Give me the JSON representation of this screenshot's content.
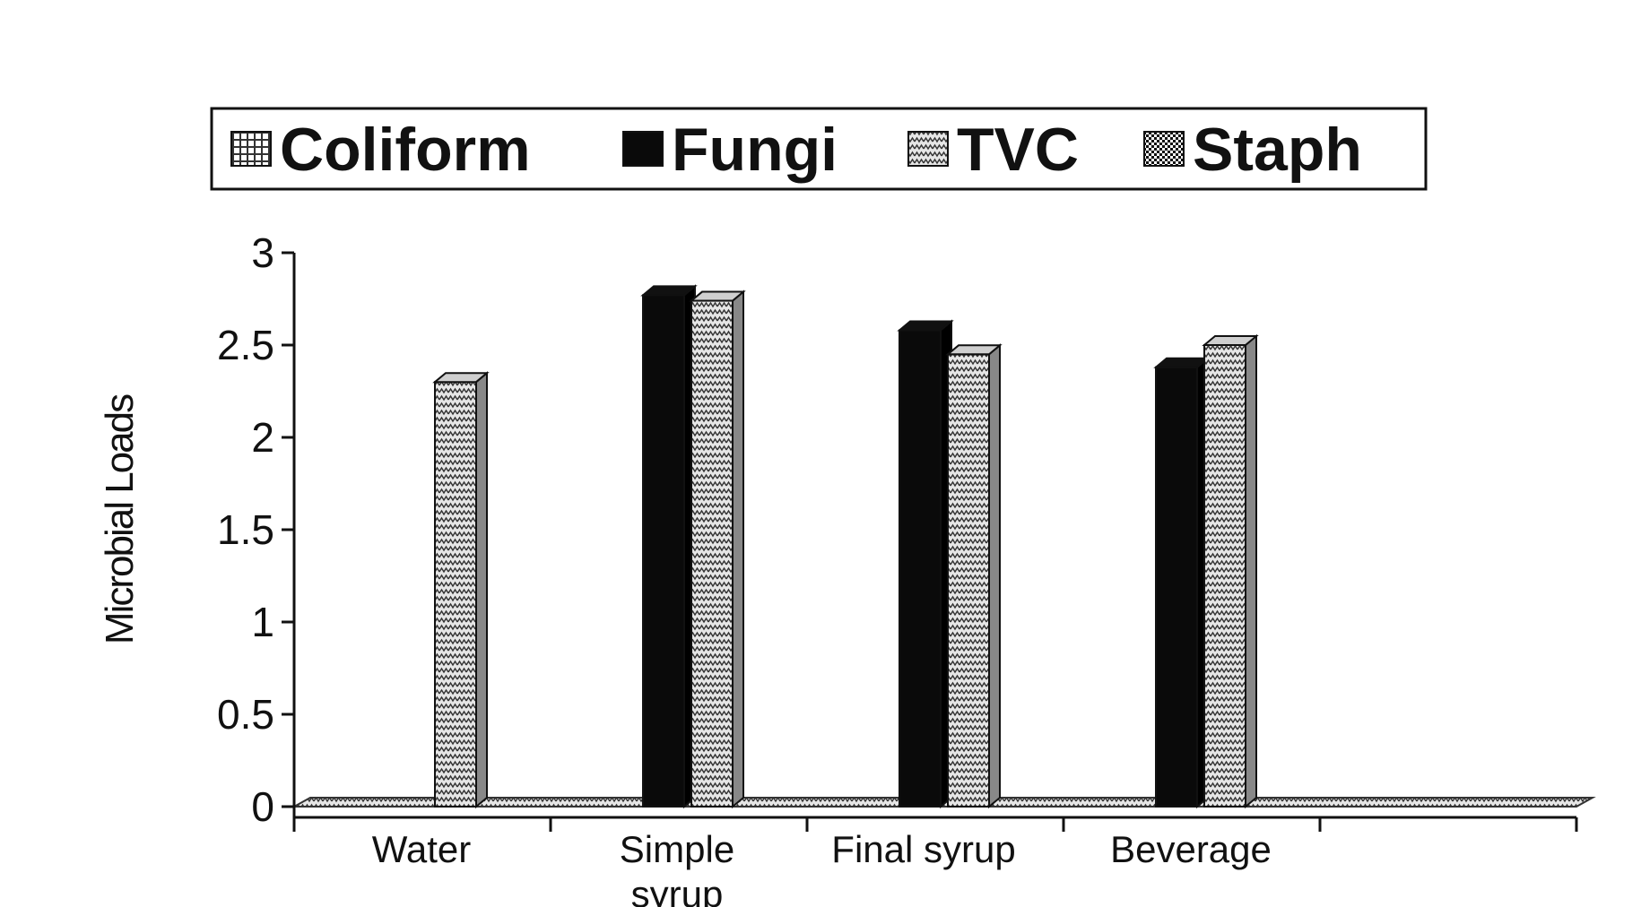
{
  "chart_data": {
    "type": "bar",
    "title": "",
    "ylabel": "Microbial Loads",
    "xlabel": "",
    "ylim": [
      0,
      3
    ],
    "yticks": [
      "0",
      "0.5",
      "1",
      "1.5",
      "2",
      "2.5",
      "3"
    ],
    "categories": [
      "Water",
      "Simple syrup",
      "Final syrup",
      "Beverage",
      ""
    ],
    "series": [
      {
        "name": "Coliform",
        "values": [
          0,
          0,
          0,
          0,
          0
        ]
      },
      {
        "name": "Fungi",
        "values": [
          0,
          2.77,
          2.58,
          2.38,
          0
        ]
      },
      {
        "name": "TVC",
        "values": [
          2.3,
          2.74,
          2.45,
          2.5,
          0
        ]
      },
      {
        "name": "Staph",
        "values": [
          0,
          0,
          0,
          0,
          0
        ]
      }
    ],
    "legend_position": "top",
    "grid": false,
    "three_d": true
  },
  "colors": {
    "Coliform": "#999999",
    "Fungi": "#0a0a0a",
    "TVC": "#c8c8c8",
    "Staph": "#555555"
  }
}
